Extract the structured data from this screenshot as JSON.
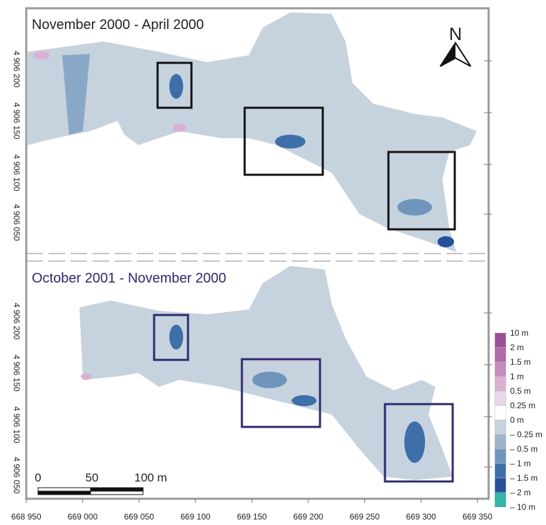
{
  "panels": [
    {
      "title": "November 2000 - April 2000"
    },
    {
      "title": "October 2001 - November 2000"
    }
  ],
  "north": "N",
  "x_axis": {
    "ticks": [
      "668 950",
      "669 000",
      "669 050",
      "669 100",
      "669 150",
      "669 200",
      "669 250",
      "669 300",
      "669 350"
    ]
  },
  "y_axis": {
    "ticks": [
      "4 906 200",
      "4 906 150",
      "4 906 100",
      "4 906 050"
    ]
  },
  "legend": {
    "labels": [
      "10 m",
      "2 m",
      "1.5 m",
      "1 m",
      "0.5 m",
      "0.25 m",
      "0 m",
      "– 0.25 m",
      "– 0.5 m",
      "– 1 m",
      "– 1.5 m",
      "– 2 m",
      "– 10 m"
    ],
    "colors": [
      "#9a4f94",
      "#b06aa8",
      "#c58cbe",
      "#d9b2d3",
      "#ead5e6",
      "#ffffff",
      "#c6d3df",
      "#9db4cb",
      "#6f95bc",
      "#3f6fa9",
      "#27509a",
      "#1e3a82",
      "#35b5a5"
    ]
  },
  "scale_bar": {
    "labels": [
      "0",
      "50",
      "100 m"
    ]
  }
}
